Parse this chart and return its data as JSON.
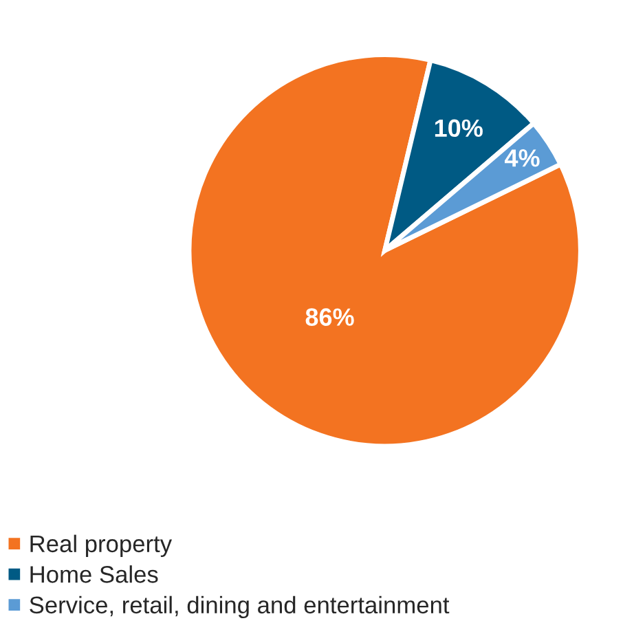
{
  "chart_data": {
    "type": "pie",
    "categories": [
      "Real property",
      "Home Sales",
      "Service, retail, dining and entertainment"
    ],
    "values": [
      86,
      10,
      4
    ],
    "colors": [
      "#f37321",
      "#005a84",
      "#5b9bd5"
    ],
    "value_labels": [
      "86%",
      "10%",
      "4%"
    ],
    "legend": "bottom left"
  }
}
